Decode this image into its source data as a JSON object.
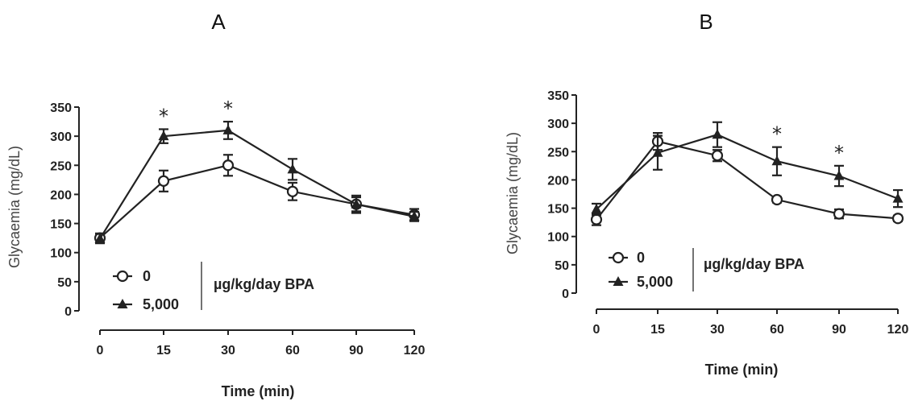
{
  "chart_data": [
    {
      "panel_label": "A",
      "type": "line",
      "x": [
        0,
        15,
        30,
        60,
        90,
        120
      ],
      "xlabel": "Time (min)",
      "ylabel": "Glycaemia (mg/dL)",
      "ylim": [
        0,
        350
      ],
      "yticks": [
        0,
        50,
        100,
        150,
        200,
        250,
        300,
        350
      ],
      "xtick_labels": [
        "0",
        "15",
        "30",
        "60",
        "90",
        "120"
      ],
      "series": [
        {
          "name": "0",
          "marker": "open-circle",
          "values": [
            125,
            223,
            250,
            205,
            183,
            165
          ],
          "errors": [
            8,
            18,
            18,
            15,
            12,
            10
          ]
        },
        {
          "name": "5,000",
          "marker": "filled-triangle",
          "values": [
            124,
            300,
            310,
            243,
            183,
            162
          ],
          "errors": [
            8,
            12,
            15,
            18,
            15,
            8
          ]
        }
      ],
      "significance": [
        {
          "x": 15,
          "label": "*"
        },
        {
          "x": 30,
          "label": "*"
        }
      ],
      "legend": {
        "placement": "bottom-left",
        "unit_label": "µg/kg/day BPA"
      }
    },
    {
      "panel_label": "B",
      "type": "line",
      "x": [
        0,
        15,
        30,
        60,
        90,
        120
      ],
      "xlabel": "Time (min)",
      "ylabel": "Glycaemia (mg/dL)",
      "ylim": [
        0,
        350
      ],
      "yticks": [
        0,
        50,
        100,
        150,
        200,
        250,
        300,
        350
      ],
      "xtick_labels": [
        "0",
        "15",
        "30",
        "60",
        "90",
        "120"
      ],
      "series": [
        {
          "name": "0",
          "marker": "open-circle",
          "values": [
            130,
            268,
            243,
            165,
            140,
            132
          ],
          "errors": [
            10,
            15,
            10,
            5,
            8,
            5
          ]
        },
        {
          "name": "5,000",
          "marker": "filled-triangle",
          "values": [
            148,
            248,
            280,
            233,
            207,
            167
          ],
          "errors": [
            10,
            30,
            22,
            25,
            18,
            15
          ]
        }
      ],
      "significance": [
        {
          "x": 60,
          "label": "*"
        },
        {
          "x": 90,
          "label": "*"
        }
      ],
      "legend": {
        "placement": "bottom-left",
        "unit_label": "µg/kg/day BPA"
      }
    }
  ]
}
